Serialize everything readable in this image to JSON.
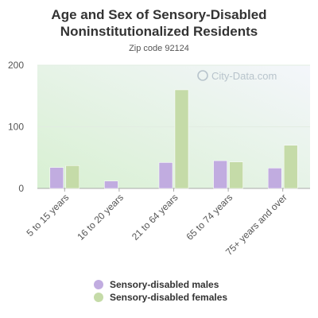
{
  "chart_data": {
    "type": "bar",
    "title_line1": "Age and Sex of Sensory-Disabled",
    "title_line2": "Noninstitutionalized Residents",
    "subtitle": "Zip code 92124",
    "watermark": "City-Data.com",
    "categories": [
      "5 to 15 years",
      "16 to 20 years",
      "21 to 64 years",
      "65 to 74 years",
      "75+ years and over"
    ],
    "series": [
      {
        "name": "Sensory-disabled males",
        "color": "#c1ace0",
        "values": [
          34,
          12,
          42,
          45,
          33
        ]
      },
      {
        "name": "Sensory-disabled females",
        "color": "#c5dba8",
        "values": [
          37,
          0,
          160,
          43,
          70
        ]
      }
    ],
    "ylim": [
      0,
      200
    ],
    "yticks": [
      0,
      100,
      200
    ],
    "grid": true,
    "legend_position": "bottom"
  }
}
